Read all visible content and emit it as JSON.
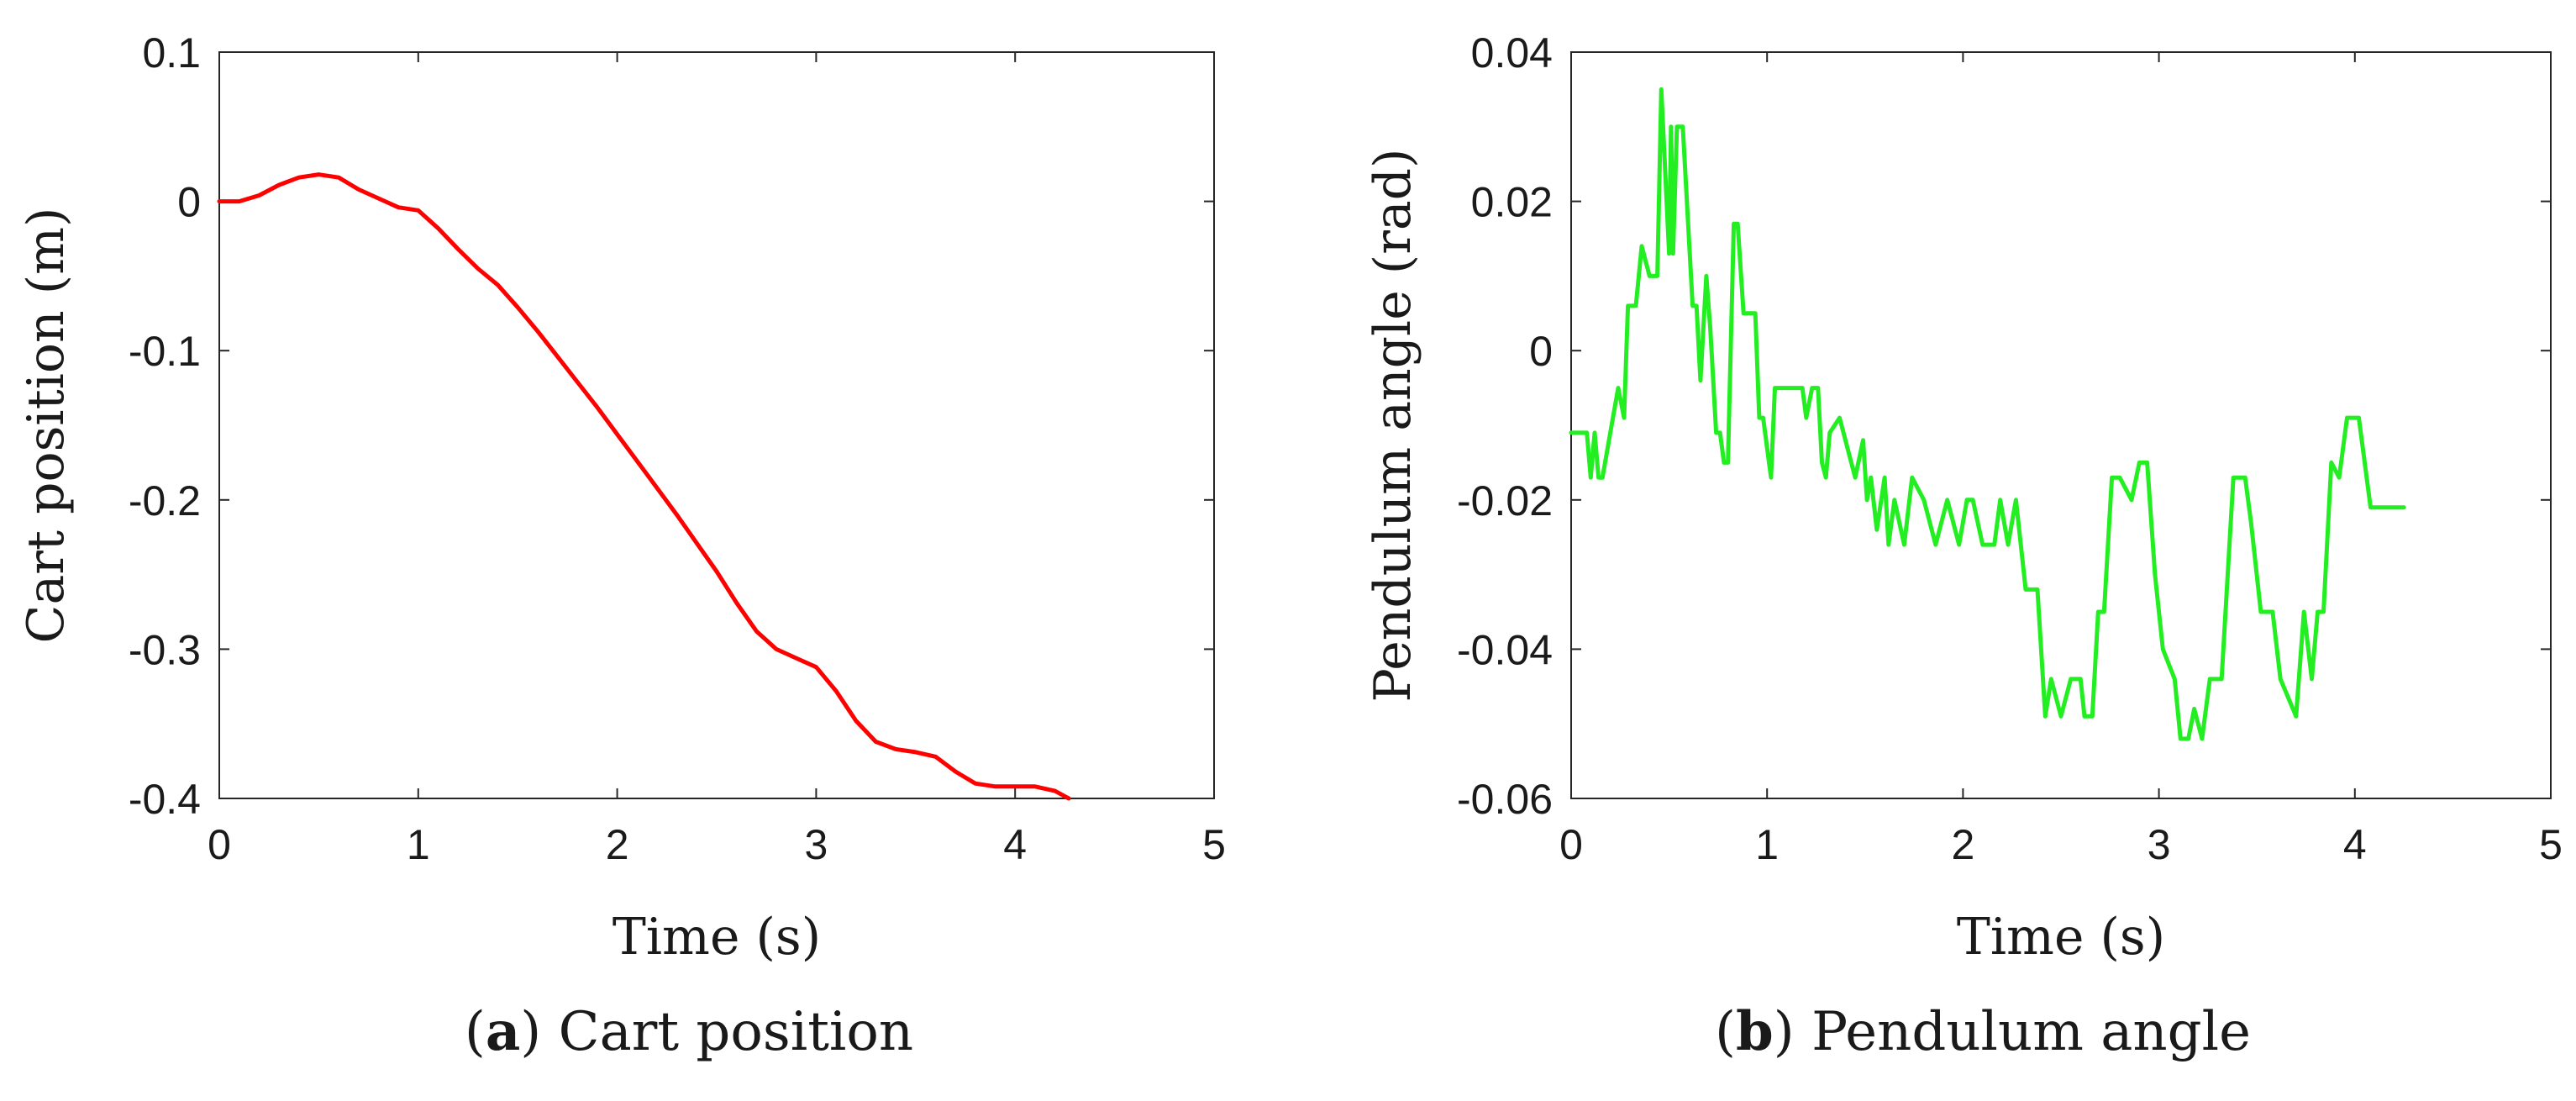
{
  "chart_data": [
    {
      "type": "line",
      "panel": "a",
      "caption_letter": "a",
      "caption_text": "Cart position",
      "xlabel": "Time (s)",
      "ylabel": "Cart position (m)",
      "xlim": [
        0,
        5
      ],
      "ylim": [
        -0.4,
        0.1
      ],
      "xticks": [
        0,
        1,
        2,
        3,
        4,
        5
      ],
      "xtick_labels": [
        "0",
        "1",
        "2",
        "3",
        "4",
        "5"
      ],
      "yticks": [
        0.1,
        0,
        -0.1,
        -0.2,
        -0.3,
        -0.4
      ],
      "ytick_labels": [
        "0.1",
        "0",
        "-0.1",
        "-0.2",
        "-0.3",
        "-0.4"
      ],
      "grid": false,
      "series": [
        {
          "name": "Cart position",
          "color": "#ff0000",
          "x": [
            0,
            0.1,
            0.2,
            0.3,
            0.4,
            0.5,
            0.6,
            0.7,
            0.8,
            0.9,
            1.0,
            1.1,
            1.2,
            1.3,
            1.4,
            1.5,
            1.6,
            1.7,
            1.8,
            1.9,
            2.0,
            2.1,
            2.2,
            2.3,
            2.4,
            2.5,
            2.6,
            2.7,
            2.8,
            2.9,
            3.0,
            3.1,
            3.2,
            3.3,
            3.4,
            3.5,
            3.6,
            3.7,
            3.8,
            3.9,
            4.0,
            4.1,
            4.2,
            4.27
          ],
          "y": [
            0,
            0,
            0.004,
            0.011,
            0.016,
            0.018,
            0.016,
            0.008,
            0.002,
            -0.004,
            -0.006,
            -0.018,
            -0.032,
            -0.045,
            -0.056,
            -0.071,
            -0.087,
            -0.104,
            -0.121,
            -0.138,
            -0.156,
            -0.174,
            -0.192,
            -0.21,
            -0.229,
            -0.248,
            -0.269,
            -0.288,
            -0.3,
            -0.306,
            -0.312,
            -0.328,
            -0.348,
            -0.362,
            -0.367,
            -0.369,
            -0.372,
            -0.382,
            -0.39,
            -0.392,
            -0.392,
            -0.392,
            -0.395,
            -0.4
          ]
        }
      ]
    },
    {
      "type": "line",
      "panel": "b",
      "caption_letter": "b",
      "caption_text": "Pendulum angle",
      "xlabel": "Time (s)",
      "ylabel": "Pendulum angle (rad)",
      "xlim": [
        0,
        5
      ],
      "ylim": [
        -0.06,
        0.04
      ],
      "xticks": [
        0,
        1,
        2,
        3,
        4,
        5
      ],
      "xtick_labels": [
        "0",
        "1",
        "2",
        "3",
        "4",
        "5"
      ],
      "yticks": [
        0.04,
        0.02,
        0,
        -0.02,
        -0.04,
        -0.06
      ],
      "ytick_labels": [
        "0.04",
        "0.02",
        "0",
        "-0.02",
        "-0.04",
        "-0.06"
      ],
      "grid": false,
      "series": [
        {
          "name": "Pendulum angle",
          "color": "#22ee22",
          "x": [
            0,
            0.08,
            0.1,
            0.12,
            0.14,
            0.16,
            0.2,
            0.24,
            0.27,
            0.29,
            0.31,
            0.33,
            0.36,
            0.4,
            0.42,
            0.44,
            0.46,
            0.5,
            0.51,
            0.52,
            0.54,
            0.55,
            0.57,
            0.62,
            0.64,
            0.66,
            0.69,
            0.71,
            0.74,
            0.76,
            0.78,
            0.8,
            0.83,
            0.85,
            0.88,
            0.9,
            0.94,
            0.96,
            0.98,
            1.02,
            1.04,
            1.08,
            1.1,
            1.18,
            1.2,
            1.23,
            1.26,
            1.28,
            1.3,
            1.32,
            1.37,
            1.45,
            1.49,
            1.51,
            1.53,
            1.56,
            1.6,
            1.62,
            1.65,
            1.7,
            1.74,
            1.8,
            1.86,
            1.92,
            1.98,
            2.02,
            2.05,
            2.1,
            2.13,
            2.16,
            2.19,
            2.23,
            2.27,
            2.32,
            2.38,
            2.42,
            2.45,
            2.5,
            2.55,
            2.6,
            2.62,
            2.66,
            2.69,
            2.72,
            2.76,
            2.8,
            2.86,
            2.9,
            2.94,
            2.98,
            3.02,
            3.08,
            3.11,
            3.15,
            3.18,
            3.22,
            3.26,
            3.32,
            3.38,
            3.41,
            3.44,
            3.47,
            3.52,
            3.58,
            3.62,
            3.7,
            3.74,
            3.78,
            3.81,
            3.84,
            3.88,
            3.92,
            3.96,
            4.02,
            4.08,
            4.11,
            4.14,
            4.18,
            4.21,
            4.25
          ],
          "y": [
            -0.011,
            -0.011,
            -0.017,
            -0.011,
            -0.017,
            -0.017,
            -0.011,
            -0.005,
            -0.009,
            0.006,
            0.006,
            0.006,
            0.014,
            0.01,
            0.01,
            0.01,
            0.035,
            0.013,
            0.03,
            0.013,
            0.03,
            0.03,
            0.03,
            0.006,
            0.006,
            -0.004,
            0.01,
            0.003,
            -0.011,
            -0.011,
            -0.015,
            -0.015,
            0.017,
            0.017,
            0.005,
            0.005,
            0.005,
            -0.009,
            -0.009,
            -0.017,
            -0.005,
            -0.005,
            -0.005,
            -0.005,
            -0.009,
            -0.005,
            -0.005,
            -0.015,
            -0.017,
            -0.011,
            -0.009,
            -0.017,
            -0.012,
            -0.02,
            -0.017,
            -0.024,
            -0.017,
            -0.026,
            -0.02,
            -0.026,
            -0.017,
            -0.02,
            -0.026,
            -0.02,
            -0.026,
            -0.02,
            -0.02,
            -0.026,
            -0.026,
            -0.026,
            -0.02,
            -0.026,
            -0.02,
            -0.032,
            -0.032,
            -0.049,
            -0.044,
            -0.049,
            -0.044,
            -0.044,
            -0.049,
            -0.049,
            -0.035,
            -0.035,
            -0.017,
            -0.017,
            -0.02,
            -0.015,
            -0.015,
            -0.03,
            -0.04,
            -0.044,
            -0.052,
            -0.052,
            -0.048,
            -0.052,
            -0.044,
            -0.044,
            -0.017,
            -0.017,
            -0.017,
            -0.023,
            -0.035,
            -0.035,
            -0.044,
            -0.049,
            -0.035,
            -0.044,
            -0.035,
            -0.035,
            -0.015,
            -0.017,
            -0.009,
            -0.009,
            -0.021,
            -0.021,
            -0.021,
            -0.021,
            -0.021,
            -0.021
          ]
        }
      ]
    }
  ]
}
